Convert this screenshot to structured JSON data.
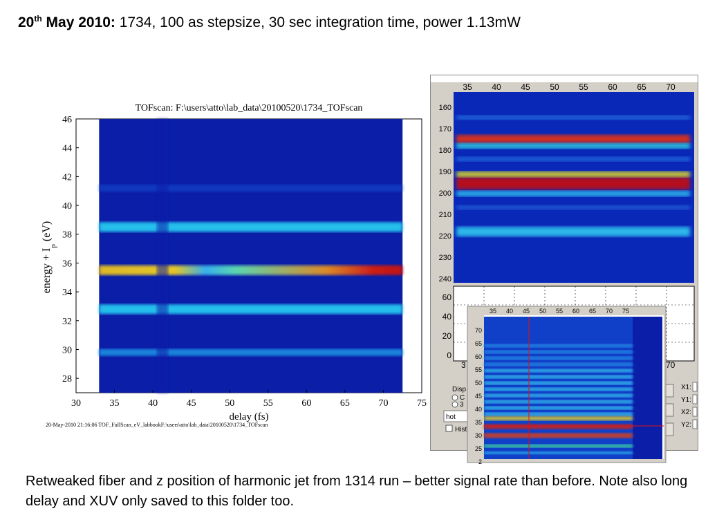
{
  "slide": {
    "title_bold": "20",
    "title_sup": "th",
    "title_bold2": " May 2010:",
    "title_rest": " 1734, 100 as stepsize, 30 sec integration time, power 1.13mW",
    "caption": "Retweaked fiber and z position of harmonic jet from 1314 run  – better signal rate than before. Note also long delay and XUV only saved to this folder too."
  },
  "colors": {
    "background": "#0a1ea8",
    "band_mid": "#28c8f0",
    "band_hot": "#e8e020",
    "band_peak": "#c81008"
  },
  "chart_data": [
    {
      "type": "heatmap",
      "title": "TOFscan: F:\\users\\atto\\lab_data\\20100520\\1734_TOFscan",
      "xlabel": "delay (fs)",
      "ylabel_main": "energy + I",
      "ylabel_sub": "p",
      "ylabel_unit": "(eV)",
      "footer": "20-May-2010 21:16:06 TOF_FullScan_eV_labbookF:\\users\\atto\\lab_data\\20100520\\1734_TOFscan",
      "xlim": [
        30,
        75
      ],
      "ylim": [
        27,
        46
      ],
      "x_ticks": [
        "30",
        "35",
        "40",
        "45",
        "50",
        "55",
        "60",
        "65",
        "70",
        "75"
      ],
      "y_ticks": [
        "28",
        "30",
        "32",
        "34",
        "36",
        "38",
        "40",
        "42",
        "44",
        "46"
      ],
      "data_x_range": [
        33,
        72.5
      ],
      "bands": [
        {
          "energy": 35.5,
          "intensity": "highest"
        },
        {
          "energy": 38.5,
          "intensity": "medium"
        },
        {
          "energy": 32.8,
          "intensity": "medium"
        },
        {
          "energy": 29.8,
          "intensity": "low"
        },
        {
          "energy": 41.2,
          "intensity": "faint"
        }
      ]
    },
    {
      "type": "heatmap",
      "panel": "raw detector scan (top right)",
      "x_ticks": [
        "35",
        "40",
        "45",
        "50",
        "55",
        "60",
        "65",
        "70"
      ],
      "y_ticks": [
        "160",
        "170",
        "180",
        "190",
        "200",
        "210",
        "220",
        "230",
        "240"
      ]
    },
    {
      "type": "line",
      "panel": "profile (middle right)",
      "y_ticks": [
        "60",
        "40",
        "20",
        "0"
      ],
      "x_tick_right": "70",
      "x_tick_left": "3",
      "side_labels": [
        "X1:",
        "Y1:",
        "X2:",
        "Y2:"
      ],
      "disp_label": "Disp",
      "radio_labels": [
        "C",
        "3"
      ],
      "colormap_value": "hot",
      "hist_label": "Hist"
    },
    {
      "type": "heatmap",
      "panel": "inset scan (bottom right)",
      "x_ticks": [
        "35",
        "40",
        "45",
        "50",
        "55",
        "60",
        "65",
        "70",
        "75"
      ],
      "y_ticks": [
        "70",
        "65",
        "60",
        "55",
        "50",
        "45",
        "40",
        "35",
        "30",
        "25",
        "2"
      ]
    }
  ]
}
